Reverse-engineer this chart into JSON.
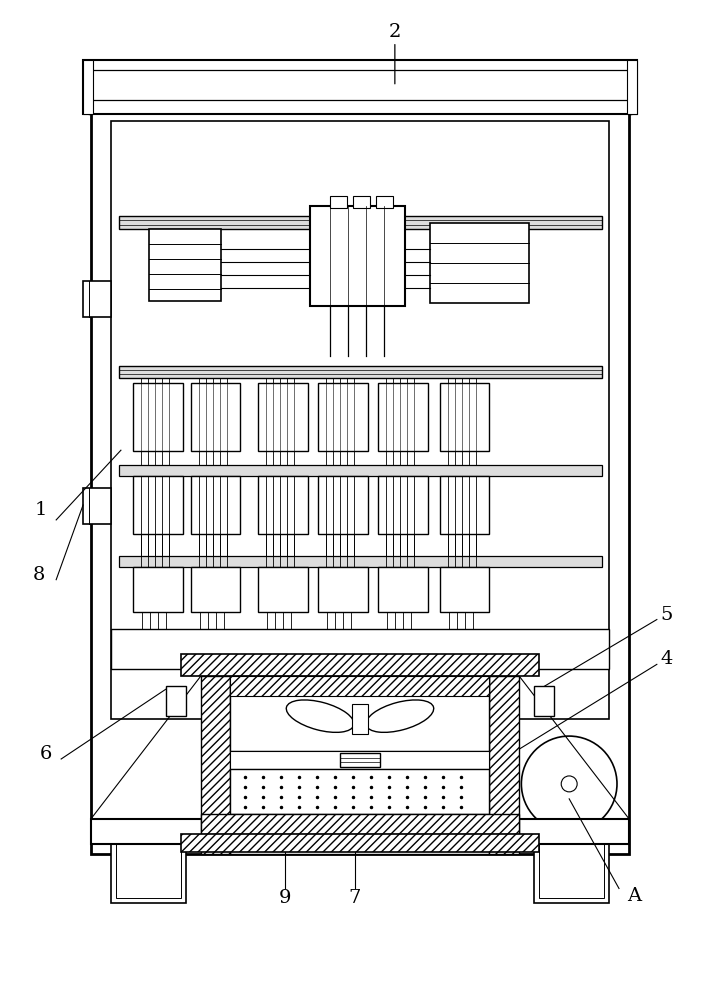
{
  "bg_color": "#ffffff",
  "line_color": "#000000",
  "fig_width": 7.18,
  "fig_height": 10.0
}
